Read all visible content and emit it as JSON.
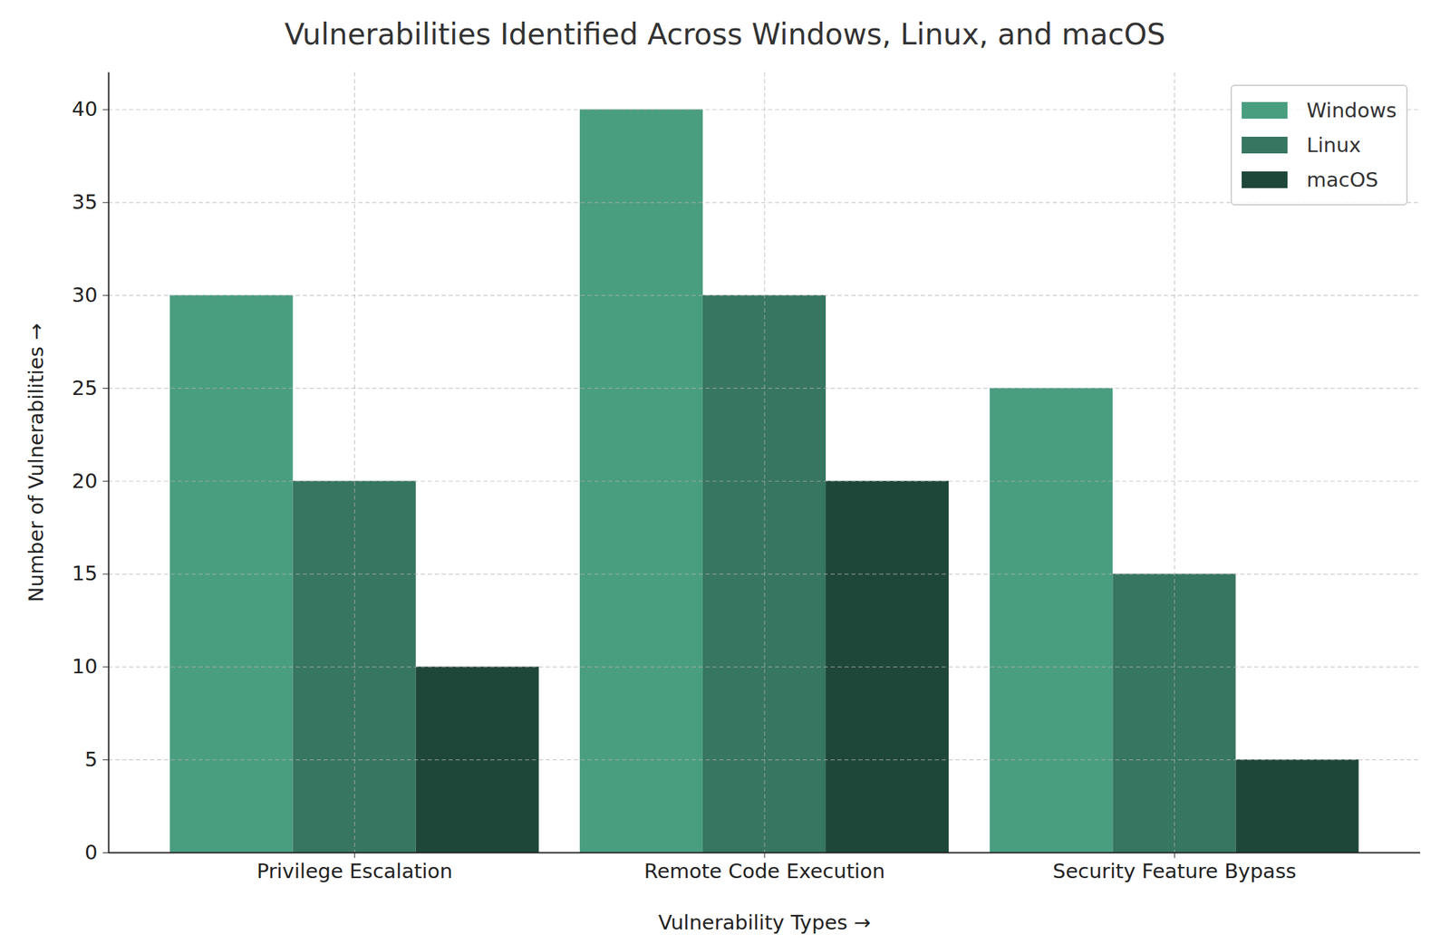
{
  "chart_data": {
    "type": "bar",
    "title": "Vulnerabilities Identified Across Windows, Linux, and macOS",
    "x_label": "Vulnerability Types",
    "y_label": "Number of Vulnerabilities",
    "categories": [
      "Privilege Escalation",
      "Remote Code Execution",
      "Security Feature Bypass"
    ],
    "series": [
      {
        "name": "Windows",
        "color": "#4a9e80",
        "values": [
          30,
          40,
          25
        ]
      },
      {
        "name": "Linux",
        "color": "#377660",
        "values": [
          20,
          30,
          15
        ]
      },
      {
        "name": "macOS",
        "color": "#1e473a",
        "values": [
          10,
          20,
          5
        ]
      }
    ],
    "ylim": [
      0,
      42
    ],
    "yticks": [
      0,
      5,
      10,
      15,
      20,
      25,
      30,
      35,
      40
    ],
    "grid": true,
    "legend": "upper right"
  }
}
